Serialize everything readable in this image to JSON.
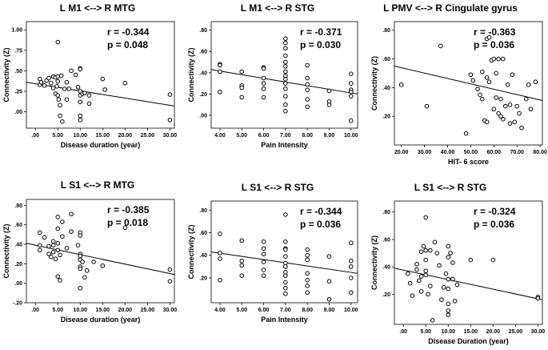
{
  "chart_data": [
    {
      "type": "scatter",
      "title": "L M1 <--> R MTG",
      "xlabel": "Disease duration (year)",
      "ylabel": "Connectivity (Z)",
      "r_text": "r = -0.344",
      "p_text": "p = 0.048",
      "xlim": [
        -2,
        31
      ],
      "ylim": [
        -0.2,
        1.1
      ],
      "xticks": [
        0,
        5,
        10,
        15,
        20,
        25,
        30
      ],
      "xtick_labels": [
        ".00",
        "5.00",
        "10.00",
        "15.00",
        "20.00",
        "25.00",
        "30.00"
      ],
      "yticks": [
        0,
        0.25,
        0.5,
        0.75,
        1.0
      ],
      "ytick_labels": [
        ".00",
        ".25",
        ".50",
        ".75",
        "1.00"
      ],
      "fit": {
        "x": [
          -2,
          31
        ],
        "y": [
          0.36,
          0.07
        ]
      },
      "points": {
        "x": [
          1,
          1,
          1.3,
          2,
          2.5,
          3,
          3.5,
          4,
          4,
          4.5,
          4.5,
          4.8,
          5,
          5,
          5,
          5,
          5.2,
          5.5,
          5.5,
          5.8,
          6,
          6.5,
          7,
          7,
          7.5,
          8,
          9,
          9.5,
          10,
          10,
          10,
          10,
          10,
          10,
          10,
          10.5,
          11,
          12,
          12,
          15,
          15.5,
          20,
          30,
          30
        ],
        "y": [
          0.4,
          0.33,
          0.36,
          0.32,
          0.38,
          0.41,
          0.35,
          0.43,
          0.29,
          0.42,
          0.22,
          0.31,
          0.85,
          0.43,
          0.37,
          0.2,
          0.15,
          0.08,
          -0.05,
          0.44,
          -0.12,
          0.28,
          0.36,
          0.15,
          0.28,
          0.5,
          0.45,
          0.3,
          0.53,
          0.52,
          0.25,
          0.2,
          0.12,
          -0.05,
          -0.1,
          0.22,
          0.23,
          0.2,
          0.1,
          0.4,
          0.27,
          0.35,
          0.21,
          -0.1
        ]
      }
    },
    {
      "type": "scatter",
      "title": "L M1 <--> R STG",
      "xlabel": "Pain Intensity",
      "ylabel": "Connectivity (Z)",
      "r_text": "r = -0.371",
      "p_text": "p = 0.030",
      "xlim": [
        3.6,
        10.3
      ],
      "ylim": [
        -0.12,
        0.88
      ],
      "xticks": [
        4,
        5,
        6,
        7,
        8,
        9,
        10
      ],
      "xtick_labels": [
        "4.00",
        "5.00",
        "6.00",
        "7.00",
        "8.00",
        "9.00",
        "10.00"
      ],
      "yticks": [
        0,
        0.2,
        0.4,
        0.6,
        0.8
      ],
      "ytick_labels": [
        ".00",
        ".20",
        ".40",
        ".60",
        ".80"
      ],
      "fit": {
        "x": [
          3.6,
          10.3
        ],
        "y": [
          0.43,
          0.2
        ]
      },
      "points": {
        "x": [
          4,
          4,
          4,
          4,
          5,
          5,
          5,
          5,
          6,
          6,
          6,
          6,
          6,
          6,
          7,
          7,
          7,
          7,
          7,
          7,
          7,
          7,
          7,
          7,
          7,
          7,
          7,
          7,
          8,
          8,
          8,
          8,
          8,
          8,
          9,
          9,
          9,
          10,
          10,
          10,
          10,
          10,
          10
        ],
        "y": [
          0.48,
          0.47,
          0.41,
          0.22,
          0.41,
          0.28,
          0.26,
          0.17,
          0.45,
          0.44,
          0.35,
          0.3,
          0.25,
          0.17,
          0.72,
          0.68,
          0.63,
          0.56,
          0.5,
          0.46,
          0.41,
          0.37,
          0.34,
          0.3,
          0.25,
          0.18,
          0.1,
          0.04,
          0.47,
          0.35,
          0.29,
          0.24,
          0.15,
          0.08,
          0.23,
          0.13,
          0.1,
          0.39,
          0.3,
          0.24,
          0.22,
          0.18,
          -0.05
        ]
      }
    },
    {
      "type": "scatter",
      "title": "L PMV  <--> R Cingulate gyrus",
      "xlabel": "HIT- 6 score",
      "ylabel": "Connectivity (Z)",
      "r_text": "r = -0.363",
      "p_text": "p = 0.036",
      "xlim": [
        17,
        81
      ],
      "ylim": [
        0,
        0.86
      ],
      "xticks": [
        20,
        30,
        40,
        50,
        60,
        70,
        80
      ],
      "xtick_labels": [
        "20.00",
        "30.00",
        "40.00",
        "50.00",
        "60.00",
        "70.00",
        "80.00"
      ],
      "yticks": [
        0.2,
        0.4,
        0.6,
        0.8
      ],
      "ytick_labels": [
        ".20",
        ".40",
        ".60",
        ".80"
      ],
      "fit": {
        "x": [
          17,
          81
        ],
        "y": [
          0.55,
          0.31
        ]
      },
      "points": {
        "x": [
          20,
          31,
          37,
          48,
          50,
          51,
          53,
          54,
          55,
          55,
          56,
          57,
          57,
          57,
          58,
          58,
          59,
          60,
          60,
          61,
          61,
          62,
          62,
          63,
          63,
          64,
          64,
          65,
          66,
          67,
          67,
          68,
          69,
          70,
          71,
          72,
          74,
          75,
          76,
          78
        ],
        "y": [
          0.42,
          0.27,
          0.69,
          0.08,
          0.49,
          0.45,
          0.39,
          0.35,
          0.51,
          0.32,
          0.17,
          0.74,
          0.47,
          0.16,
          0.75,
          0.44,
          0.59,
          0.6,
          0.25,
          0.5,
          0.33,
          0.22,
          0.6,
          0.32,
          0.2,
          0.18,
          0.6,
          0.27,
          0.42,
          0.28,
          0.15,
          0.49,
          0.16,
          0.27,
          0.22,
          0.12,
          0.32,
          0.42,
          0.25,
          0.44
        ]
      }
    },
    {
      "type": "scatter",
      "title": "L S1 <--> R MTG",
      "xlabel": "Disease duration (year)",
      "ylabel": "Connectivity (Z)",
      "r_text": "r = -0.385",
      "p_text": "p = 0.018",
      "xlim": [
        -2,
        31
      ],
      "ylim": [
        -0.2,
        0.86
      ],
      "xticks": [
        0,
        5,
        10,
        15,
        20,
        25,
        30
      ],
      "xtick_labels": [
        ".00",
        "5.00",
        "10.00",
        "15.00",
        "20.00",
        "25.00",
        "30.00"
      ],
      "yticks": [
        -0.2,
        0,
        0.2,
        0.4,
        0.6,
        0.8
      ],
      "ytick_labels": [
        "-.20",
        ".00",
        ".20",
        ".40",
        ".60",
        ".80"
      ],
      "fit": {
        "x": [
          -2,
          31
        ],
        "y": [
          0.41,
          0.09
        ]
      },
      "points": {
        "x": [
          1,
          1,
          1,
          2,
          3,
          3,
          3.5,
          4,
          4,
          4,
          4.5,
          5,
          5,
          5,
          5,
          5,
          5.5,
          5.5,
          6,
          6,
          7,
          8,
          8,
          9.5,
          10,
          10,
          10,
          10,
          10,
          10,
          10,
          10,
          10.5,
          11,
          11.5,
          13,
          15,
          20,
          30,
          30
        ],
        "y": [
          0.52,
          0.39,
          0.34,
          0.47,
          0.38,
          0.3,
          0.27,
          0.43,
          0.39,
          0.32,
          0.25,
          0.68,
          0.56,
          0.41,
          0.34,
          0.07,
          0.29,
          0.03,
          0.63,
          0.48,
          0.36,
          0.71,
          0.53,
          0.39,
          0.52,
          0.49,
          0.3,
          0.28,
          0.24,
          0.17,
          0.15,
          -0.05,
          0.22,
          0.06,
          0.13,
          0.22,
          0.18,
          0.57,
          0.14,
          0.02
        ]
      }
    },
    {
      "type": "scatter",
      "title": "L S1 <--> R STG",
      "xlabel": "Pain Intensity",
      "ylabel": "Connectivity (Z)",
      "r_text": "r = -0.344",
      "p_text": "p = 0.036",
      "xlim": [
        3.6,
        10.3
      ],
      "ylim": [
        -0.02,
        0.88
      ],
      "xticks": [
        4,
        5,
        6,
        7,
        8,
        9,
        10
      ],
      "xtick_labels": [
        "4.00",
        "5.00",
        "6.00",
        "7.00",
        "8.00",
        "9.00",
        "10.00"
      ],
      "yticks": [
        0.2,
        0.4,
        0.6,
        0.8
      ],
      "ytick_labels": [
        ".20",
        ".40",
        ".60",
        ".80"
      ],
      "fit": {
        "x": [
          3.6,
          10.3
        ],
        "y": [
          0.43,
          0.24
        ]
      },
      "points": {
        "x": [
          4,
          4,
          4,
          4,
          5,
          5,
          5,
          5,
          6,
          6,
          6,
          6,
          6,
          6,
          7,
          7,
          7,
          7,
          7,
          7,
          7,
          7,
          7,
          7,
          7,
          7,
          8,
          8,
          8,
          8,
          8,
          8,
          8,
          9,
          9,
          9,
          10,
          10,
          10,
          10,
          10
        ],
        "y": [
          0.59,
          0.42,
          0.37,
          0.18,
          0.53,
          0.35,
          0.31,
          0.22,
          0.52,
          0.46,
          0.41,
          0.34,
          0.27,
          0.22,
          0.76,
          0.52,
          0.46,
          0.45,
          0.39,
          0.33,
          0.3,
          0.25,
          0.22,
          0.16,
          0.11,
          0.06,
          0.45,
          0.4,
          0.36,
          0.24,
          0.18,
          0.13,
          0.07,
          0.39,
          0.17,
          0.01,
          0.51,
          0.35,
          0.3,
          0.2,
          0.07
        ]
      }
    },
    {
      "type": "scatter",
      "title": "L S1 <--> R STG",
      "xlabel": "Disease Duration (year)",
      "ylabel": "Connectivity (Z)",
      "r_text": "r = -0.324",
      "p_text": "p = 0.036",
      "xlim": [
        -2,
        31
      ],
      "ylim": [
        -0.02,
        0.88
      ],
      "xticks": [
        0,
        5,
        10,
        15,
        20,
        25,
        30
      ],
      "xtick_labels": [
        ".00",
        "5.00",
        "10.00",
        "15.00",
        "20.00",
        "25.00",
        "30.00"
      ],
      "yticks": [
        0.2,
        0.4,
        0.6,
        0.8
      ],
      "ytick_labels": [
        ".20",
        ".40",
        ".60",
        ".80"
      ],
      "fit": {
        "x": [
          -2,
          31
        ],
        "y": [
          0.39,
          0.16
        ]
      },
      "points": {
        "x": [
          1,
          1.5,
          2,
          3,
          3,
          3.5,
          4,
          4,
          4,
          4.5,
          5,
          5,
          5,
          5,
          5,
          5.5,
          6,
          6,
          6.5,
          7,
          7.5,
          8,
          8.5,
          9,
          9.5,
          10,
          10,
          10,
          10,
          10,
          10,
          10,
          10.5,
          11,
          11,
          11.5,
          12,
          15,
          20,
          30,
          30
        ],
        "y": [
          0.35,
          0.28,
          0.19,
          0.42,
          0.38,
          0.3,
          0.51,
          0.33,
          0.22,
          0.55,
          0.76,
          0.52,
          0.45,
          0.37,
          0.34,
          0.2,
          0.52,
          0.26,
          0.01,
          0.58,
          0.5,
          0.41,
          0.16,
          0.25,
          0.35,
          0.55,
          0.47,
          0.31,
          0.24,
          0.13,
          0.08,
          0.05,
          0.5,
          0.43,
          0.31,
          0.15,
          0.27,
          0.45,
          0.45,
          0.18,
          0.17
        ]
      }
    }
  ]
}
